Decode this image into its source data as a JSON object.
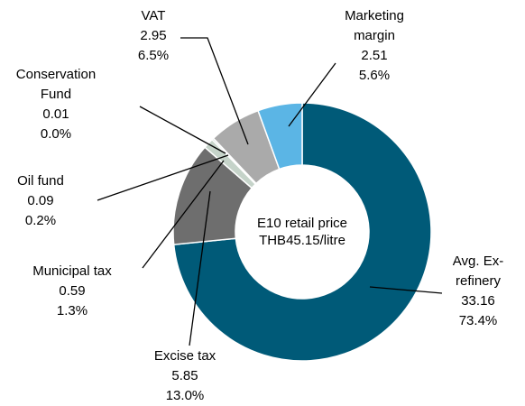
{
  "chart_data": {
    "type": "pie",
    "donut": true,
    "center_label": [
      "E10 retail price",
      "THB45.15/litre"
    ],
    "categories": [
      [
        "Avg. Ex-",
        "refinery"
      ],
      [
        "Excise tax"
      ],
      [
        "Municipal tax"
      ],
      [
        "Oil fund"
      ],
      [
        "Conservation",
        "Fund"
      ],
      [
        "VAT"
      ],
      [
        "Marketing",
        "margin"
      ]
    ],
    "values": [
      33.16,
      5.85,
      0.59,
      0.09,
      0.01,
      2.95,
      2.51
    ],
    "percent_labels": [
      "73.4%",
      "13.0%",
      "1.3%",
      "0.2%",
      "0.0%",
      "6.5%",
      "5.6%"
    ],
    "colors": [
      "#005a78",
      "#6e6e6e",
      "#c5d3c9",
      "#5e8a7a",
      "#ffffff",
      "#aaaaaa",
      "#5bb5e5"
    ]
  }
}
